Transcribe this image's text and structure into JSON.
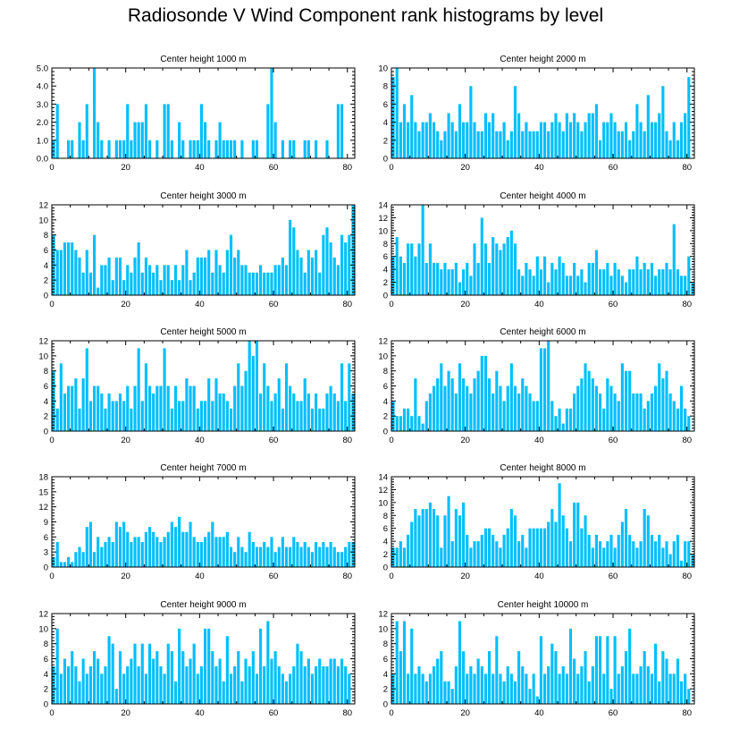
{
  "title": "Radiosonde V Wind Component rank histograms by level",
  "colors": {
    "bar": "#00bfff",
    "axis": "#000000",
    "background": "#ffffff"
  },
  "chart_data": [
    {
      "type": "bar",
      "title": "Center height 1000 m",
      "xlim": [
        0,
        82
      ],
      "ylim": [
        0,
        5
      ],
      "xticks": [
        0,
        20,
        40,
        60,
        80
      ],
      "yticks": [
        0,
        1,
        2,
        3,
        4,
        5
      ],
      "ytick_labels": [
        "0.0",
        "1.0",
        "2.0",
        "3.0",
        "4.0",
        "5.0"
      ],
      "values": [
        1,
        3,
        0,
        0,
        1,
        1,
        0,
        2,
        1,
        3,
        0,
        5,
        2,
        1,
        0,
        1,
        0,
        1,
        1,
        1,
        3,
        1,
        2,
        2,
        2,
        3,
        1,
        0,
        1,
        0,
        3,
        3,
        1,
        0,
        2,
        1,
        0,
        1,
        1,
        1,
        3,
        2,
        1,
        0,
        1,
        2,
        1,
        1,
        1,
        1,
        0,
        1,
        0,
        0,
        1,
        1,
        0,
        0,
        3,
        5,
        2,
        0,
        1,
        0,
        1,
        1,
        0,
        0,
        1,
        1,
        0,
        1,
        0,
        0,
        1,
        0,
        0,
        3,
        3,
        0,
        0
      ]
    },
    {
      "type": "bar",
      "title": "Center height 2000 m",
      "xlim": [
        0,
        82
      ],
      "ylim": [
        0,
        10
      ],
      "xticks": [
        0,
        20,
        40,
        60,
        80
      ],
      "yticks": [
        0,
        2,
        4,
        6,
        8,
        10
      ],
      "ytick_labels": [
        "0",
        "2",
        "4",
        "6",
        "8",
        "10"
      ],
      "values": [
        9,
        10,
        4,
        6,
        4,
        7,
        4,
        3,
        4,
        4,
        5,
        4,
        3,
        2,
        3,
        5,
        4,
        3,
        6,
        4,
        4,
        8,
        4,
        3,
        3,
        5,
        4,
        5,
        3,
        3,
        4,
        2,
        3,
        8,
        5,
        3,
        4,
        3,
        3,
        3,
        4,
        4,
        3,
        4,
        5,
        4,
        3,
        5,
        4,
        5,
        4,
        3,
        4,
        5,
        5,
        6,
        2,
        4,
        4,
        5,
        4,
        3,
        3,
        4,
        2,
        3,
        6,
        4,
        3,
        7,
        4,
        4,
        5,
        8,
        3,
        2,
        4,
        2,
        4,
        5,
        9
      ]
    },
    {
      "type": "bar",
      "title": "Center height 3000 m",
      "xlim": [
        0,
        82
      ],
      "ylim": [
        0,
        12
      ],
      "xticks": [
        0,
        20,
        40,
        60,
        80
      ],
      "yticks": [
        0,
        2,
        4,
        6,
        8,
        10,
        12
      ],
      "ytick_labels": [
        "0",
        "2",
        "4",
        "6",
        "8",
        "10",
        "12"
      ],
      "values": [
        8,
        6,
        6,
        7,
        7,
        7,
        6,
        5,
        3,
        6,
        3,
        8,
        1,
        4,
        4,
        5,
        2,
        5,
        5,
        2,
        4,
        3,
        5,
        7,
        3,
        5,
        4,
        3,
        4,
        2,
        4,
        4,
        2,
        4,
        2,
        4,
        6,
        2,
        3,
        5,
        5,
        5,
        6,
        3,
        6,
        4,
        3,
        6,
        8,
        5,
        6,
        4,
        4,
        3,
        3,
        3,
        4,
        3,
        3,
        3,
        4,
        4,
        5,
        4,
        10,
        9,
        6,
        5,
        3,
        6,
        5,
        6,
        3,
        8,
        9,
        7,
        5,
        4,
        8,
        7,
        8,
        12
      ]
    },
    {
      "type": "bar",
      "title": "Center height 4000 m",
      "xlim": [
        0,
        82
      ],
      "ylim": [
        0,
        14
      ],
      "xticks": [
        0,
        20,
        40,
        60,
        80
      ],
      "yticks": [
        0,
        2,
        4,
        6,
        8,
        10,
        12,
        14
      ],
      "ytick_labels": [
        "0",
        "2",
        "4",
        "6",
        "8",
        "10",
        "12",
        "14"
      ],
      "values": [
        6,
        9,
        6,
        5,
        8,
        8,
        6,
        8,
        14,
        5,
        8,
        5,
        5,
        4,
        5,
        4,
        4,
        5,
        2,
        4,
        5,
        3,
        8,
        5,
        12,
        8,
        5,
        9,
        8,
        7,
        8,
        9,
        10,
        8,
        4,
        3,
        5,
        4,
        3,
        6,
        4,
        6,
        2,
        5,
        4,
        6,
        5,
        3,
        3,
        5,
        3,
        4,
        2,
        5,
        5,
        7,
        4,
        4,
        5,
        3,
        5,
        4,
        3,
        2,
        4,
        4,
        6,
        4,
        5,
        4,
        5,
        3,
        4,
        4,
        5,
        4,
        11,
        4,
        3,
        3,
        6,
        2
      ]
    },
    {
      "type": "bar",
      "title": "Center height 5000 m",
      "xlim": [
        0,
        82
      ],
      "ylim": [
        0,
        12
      ],
      "xticks": [
        0,
        20,
        40,
        60,
        80
      ],
      "yticks": [
        0,
        2,
        4,
        6,
        8,
        10,
        12
      ],
      "ytick_labels": [
        "0",
        "2",
        "4",
        "6",
        "8",
        "10",
        "12"
      ],
      "values": [
        8,
        3,
        9,
        5,
        6,
        6,
        7,
        3,
        7,
        11,
        4,
        6,
        6,
        5,
        3,
        5,
        4,
        4,
        5,
        4,
        6,
        3,
        6,
        11,
        4,
        9,
        6,
        5,
        6,
        6,
        11,
        6,
        3,
        6,
        4,
        4,
        7,
        6,
        6,
        3,
        4,
        4,
        7,
        4,
        7,
        5,
        5,
        4,
        3,
        6,
        9,
        6,
        8,
        12,
        10,
        12,
        5,
        9,
        6,
        4,
        5,
        7,
        3,
        9,
        6,
        5,
        4,
        4,
        7,
        5,
        3,
        5,
        3,
        3,
        5,
        6,
        5,
        4,
        9,
        4,
        9,
        5
      ]
    },
    {
      "type": "bar",
      "title": "Center height 6000 m",
      "xlim": [
        0,
        82
      ],
      "ylim": [
        0,
        12
      ],
      "xticks": [
        0,
        20,
        40,
        60,
        80
      ],
      "yticks": [
        0,
        2,
        4,
        6,
        8,
        10,
        12
      ],
      "ytick_labels": [
        "0",
        "2",
        "4",
        "6",
        "8",
        "10",
        "12"
      ],
      "values": [
        4,
        2,
        2,
        3,
        3,
        2,
        7,
        2,
        1,
        4,
        5,
        6,
        7,
        9,
        6,
        8,
        7,
        5,
        9,
        7,
        6,
        5,
        7,
        8,
        10,
        10,
        7,
        5,
        8,
        6,
        4,
        6,
        9,
        6,
        5,
        7,
        6,
        5,
        4,
        4,
        11,
        11,
        12,
        4,
        2,
        3,
        1,
        3,
        3,
        5,
        6,
        7,
        9,
        8,
        7,
        6,
        5,
        3,
        7,
        6,
        5,
        4,
        9,
        8,
        8,
        5,
        5,
        5,
        3,
        4,
        5,
        6,
        9,
        7,
        8,
        5,
        4,
        3,
        6,
        3,
        2
      ]
    },
    {
      "type": "bar",
      "title": "Center height 7000 m",
      "xlim": [
        0,
        82
      ],
      "ylim": [
        0,
        18
      ],
      "xticks": [
        0,
        20,
        40,
        60,
        80
      ],
      "yticks": [
        0,
        3,
        6,
        9,
        12,
        15,
        18
      ],
      "ytick_labels": [
        "0",
        "3",
        "6",
        "9",
        "12",
        "15",
        "18"
      ],
      "values": [
        2,
        5,
        1,
        1,
        2,
        1,
        3,
        4,
        3,
        8,
        9,
        3,
        6,
        4,
        5,
        6,
        5,
        9,
        8,
        9,
        7,
        5,
        6,
        6,
        5,
        7,
        8,
        7,
        6,
        5,
        6,
        7,
        9,
        8,
        10,
        7,
        7,
        9,
        6,
        5,
        5,
        6,
        7,
        9,
        6,
        6,
        6,
        7,
        4,
        3,
        6,
        4,
        3,
        7,
        5,
        4,
        4,
        5,
        4,
        6,
        3,
        4,
        6,
        4,
        4,
        6,
        5,
        4,
        5,
        4,
        3,
        5,
        4,
        5,
        4,
        5,
        4,
        3,
        3,
        4,
        5,
        5
      ]
    },
    {
      "type": "bar",
      "title": "Center height 8000 m",
      "xlim": [
        0,
        82
      ],
      "ylim": [
        0,
        14
      ],
      "xticks": [
        0,
        20,
        40,
        60,
        80
      ],
      "yticks": [
        0,
        2,
        4,
        6,
        8,
        10,
        12,
        14
      ],
      "ytick_labels": [
        "0",
        "2",
        "4",
        "6",
        "8",
        "10",
        "12",
        "14"
      ],
      "values": [
        3,
        3,
        4,
        3,
        5,
        7,
        9,
        8,
        9,
        9,
        10,
        9,
        8,
        3,
        8,
        11,
        4,
        9,
        8,
        10,
        5,
        3,
        4,
        4,
        5,
        6,
        6,
        5,
        4,
        3,
        5,
        6,
        9,
        8,
        4,
        5,
        3,
        6,
        6,
        6,
        6,
        6,
        7,
        9,
        7,
        13,
        8,
        6,
        4,
        10,
        10,
        6,
        8,
        5,
        3,
        5,
        4,
        3,
        4,
        5,
        3,
        5,
        7,
        9,
        5,
        4,
        3,
        4,
        9,
        8,
        5,
        4,
        5,
        3,
        4,
        2,
        4,
        5,
        1,
        4,
        4,
        2
      ]
    },
    {
      "type": "bar",
      "title": "Center height 9000 m",
      "xlim": [
        0,
        82
      ],
      "ylim": [
        0,
        12
      ],
      "xticks": [
        0,
        20,
        40,
        60,
        80
      ],
      "yticks": [
        0,
        2,
        4,
        6,
        8,
        10,
        12
      ],
      "ytick_labels": [
        "0",
        "2",
        "4",
        "6",
        "8",
        "10",
        "12"
      ],
      "values": [
        5,
        10,
        4,
        6,
        5,
        7,
        5,
        3,
        6,
        4,
        5,
        7,
        6,
        4,
        5,
        9,
        8,
        2,
        7,
        4,
        5,
        6,
        8,
        5,
        8,
        4,
        8,
        6,
        7,
        5,
        4,
        8,
        7,
        3,
        10,
        7,
        5,
        6,
        8,
        4,
        5,
        10,
        10,
        7,
        5,
        6,
        3,
        9,
        4,
        5,
        7,
        3,
        6,
        5,
        7,
        4,
        10,
        5,
        11,
        6,
        7,
        5,
        4,
        3,
        4,
        5,
        8,
        7,
        5,
        6,
        4,
        5,
        6,
        5,
        5,
        6,
        6,
        5,
        6,
        5,
        4
      ]
    },
    {
      "type": "bar",
      "title": "Center height 10000 m",
      "xlim": [
        0,
        82
      ],
      "ylim": [
        0,
        12
      ],
      "xticks": [
        0,
        20,
        40,
        60,
        80
      ],
      "yticks": [
        0,
        2,
        4,
        6,
        8,
        10,
        12
      ],
      "ytick_labels": [
        "0",
        "2",
        "4",
        "6",
        "8",
        "10",
        "12"
      ],
      "values": [
        4,
        11,
        7,
        11,
        4,
        10,
        4,
        5,
        4,
        3,
        4,
        5,
        6,
        7,
        3,
        3,
        2,
        5,
        11,
        7,
        4,
        5,
        4,
        6,
        5,
        4,
        7,
        4,
        9,
        4,
        3,
        5,
        4,
        3,
        7,
        5,
        4,
        2,
        4,
        1,
        9,
        4,
        5,
        8,
        7,
        4,
        5,
        4,
        10,
        6,
        4,
        5,
        7,
        3,
        5,
        9,
        9,
        4,
        9,
        2,
        9,
        4,
        5,
        7,
        10,
        4,
        4,
        5,
        7,
        5,
        4,
        8,
        3,
        7,
        6,
        4,
        4,
        6,
        3,
        4,
        2
      ]
    }
  ]
}
